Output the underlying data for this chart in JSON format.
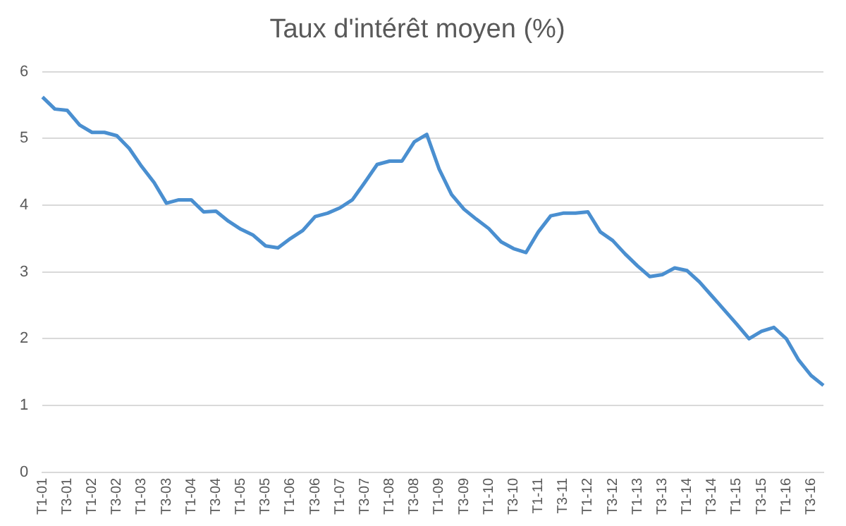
{
  "chart_data": {
    "type": "line",
    "title": "Taux d'intérêt moyen (%)",
    "categories": [
      "T1-01",
      null,
      "T3-01",
      null,
      "T1-02",
      null,
      "T3-02",
      null,
      "T1-03",
      null,
      "T3-03",
      null,
      "T1-04",
      null,
      "T3-04",
      null,
      "T1-05",
      null,
      "T3-05",
      null,
      "T1-06",
      null,
      "T3-06",
      null,
      "T1-07",
      null,
      "T3-07",
      null,
      "T1-08",
      null,
      "T3-08",
      null,
      "T1-09",
      null,
      "T3-09",
      null,
      "T1-10",
      null,
      "T3-10",
      null,
      "T1-11",
      null,
      "T3-11",
      null,
      "T1-12",
      null,
      "T3-12",
      null,
      "T1-13",
      null,
      "T3-13",
      null,
      "T1-14",
      null,
      "T3-14",
      null,
      "T1-15",
      null,
      "T3-15",
      null,
      "T1-16",
      null,
      "T3-16",
      null
    ],
    "series": [
      {
        "color": "#4a8fd0",
        "values": [
          5.62,
          5.44,
          5.42,
          5.2,
          5.09,
          5.09,
          5.04,
          4.85,
          4.58,
          4.34,
          4.03,
          4.08,
          4.08,
          3.9,
          3.91,
          3.76,
          3.64,
          3.55,
          3.39,
          3.36,
          3.5,
          3.62,
          3.83,
          3.88,
          3.96,
          4.08,
          4.34,
          4.61,
          4.66,
          4.66,
          4.95,
          5.06,
          4.54,
          4.16,
          3.94,
          3.79,
          3.65,
          3.45,
          3.35,
          3.29,
          3.6,
          3.84,
          3.88,
          3.88,
          3.9,
          3.6,
          3.47,
          3.27,
          3.09,
          2.93,
          2.96,
          3.06,
          3.02,
          2.85,
          2.64,
          2.43,
          2.22,
          2.0,
          2.11,
          2.17,
          2.0,
          1.68,
          1.45,
          1.3
        ]
      }
    ],
    "ylim": [
      0,
      6
    ],
    "yticks": [
      0,
      1,
      2,
      3,
      4,
      5,
      6
    ],
    "grid": "y",
    "legend": false,
    "marker": "none",
    "line_style": "solid"
  }
}
